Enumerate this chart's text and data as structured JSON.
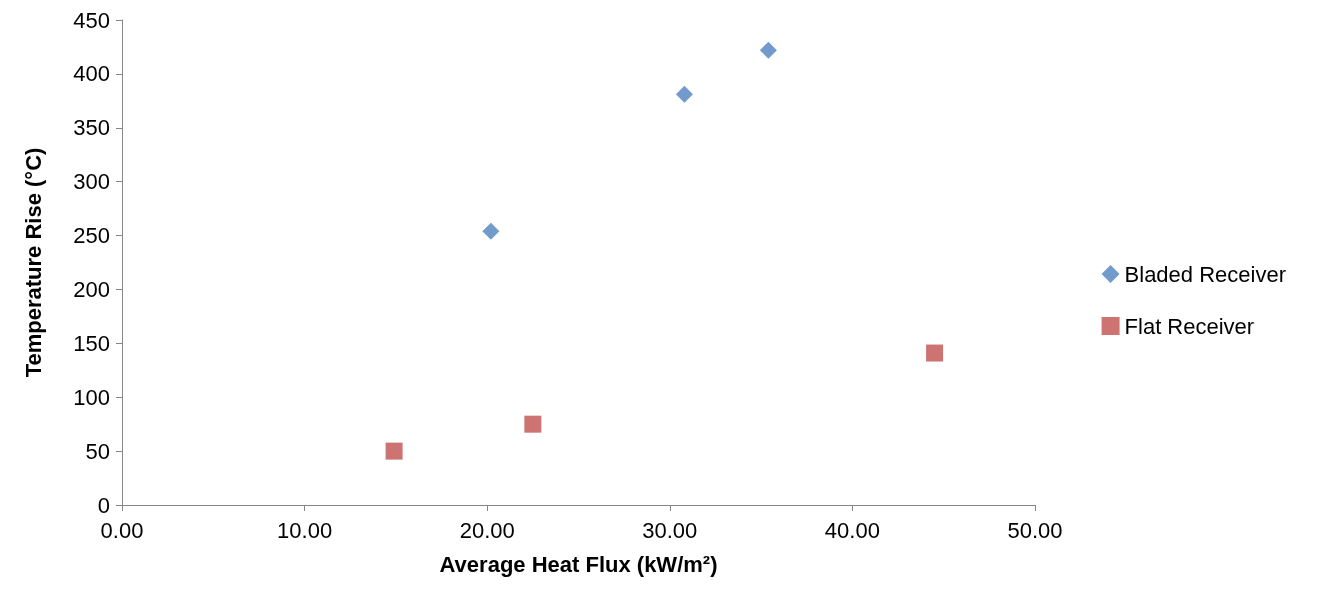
{
  "chart_data": {
    "type": "scatter",
    "xlabel": "Average Heat Flux (kW/m²)",
    "ylabel": "Temperature Rise (°C)",
    "xlim": [
      0,
      50
    ],
    "xticks": [
      {
        "value": 0,
        "label": "0.00"
      },
      {
        "value": 10,
        "label": "10.00"
      },
      {
        "value": 20,
        "label": "20.00"
      },
      {
        "value": 30,
        "label": "30.00"
      },
      {
        "value": 40,
        "label": "40.00"
      },
      {
        "value": 50,
        "label": "50.00"
      }
    ],
    "ylim": [
      0,
      450
    ],
    "yticks": [
      0,
      50,
      100,
      150,
      200,
      250,
      300,
      350,
      400,
      450
    ],
    "grid": false,
    "legend": "right",
    "series": [
      {
        "name": "Bladed Receiver",
        "color": "#4f81bd",
        "marker": "diamond",
        "x": [
          20.2,
          30.8,
          35.4
        ],
        "values": [
          254,
          381,
          422
        ]
      },
      {
        "name": "Flat Receiver",
        "color": "#c0504d",
        "marker": "square",
        "x": [
          14.9,
          22.5,
          44.5
        ],
        "values": [
          50,
          75,
          141
        ]
      }
    ]
  }
}
